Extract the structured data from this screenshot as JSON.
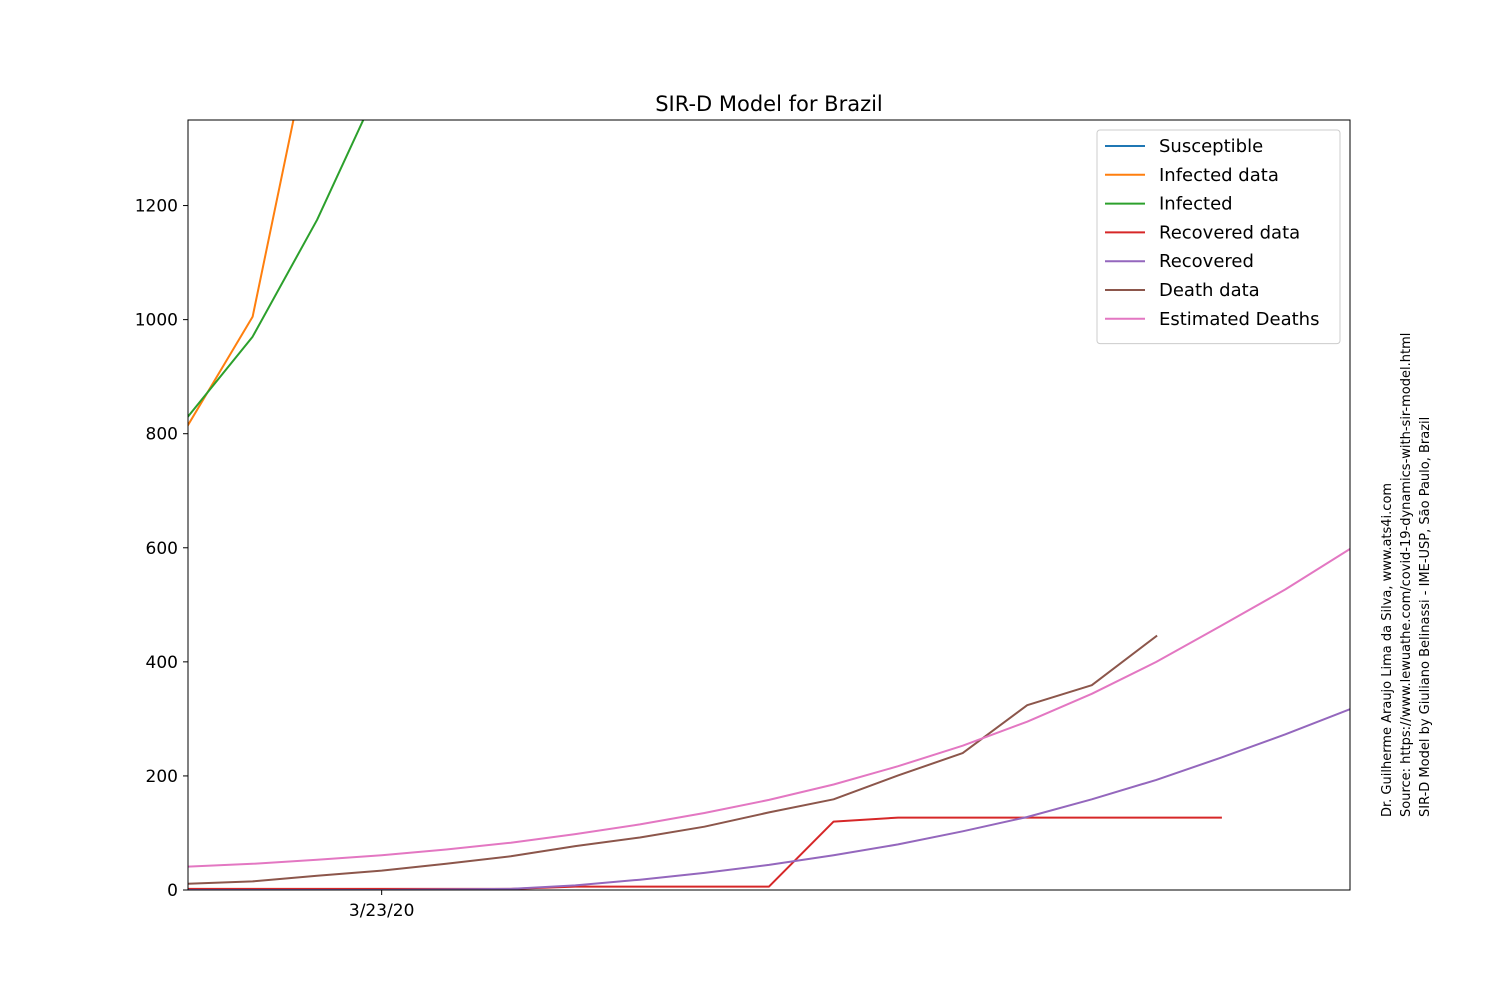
{
  "chart_data": {
    "type": "line",
    "title": "SIR-D Model for Brazil",
    "xlabel": "",
    "ylabel": "",
    "x_start": "3/20/20",
    "x_end": "4/7/20",
    "x_tick_labels": [
      {
        "date": "3/23/20",
        "label": "3/23/20"
      }
    ],
    "ylim": [
      0,
      1350
    ],
    "y_ticks": [
      0,
      200,
      400,
      600,
      800,
      1000,
      1200
    ],
    "grid": false,
    "legend_position": "top-right",
    "series": [
      {
        "name": "Susceptible",
        "color": "#1f77b4",
        "points": []
      },
      {
        "name": "Infected data",
        "color": "#ff7f0e",
        "points": [
          {
            "x": "3/20/20",
            "y": 815
          },
          {
            "x": "3/21/20",
            "y": 1005
          },
          {
            "x": "3/22/20",
            "y": 1550
          }
        ]
      },
      {
        "name": "Infected",
        "color": "#2ca02c",
        "points": [
          {
            "x": "3/20/20",
            "y": 830
          },
          {
            "x": "3/21/20",
            "y": 970
          },
          {
            "x": "3/22/20",
            "y": 1175
          },
          {
            "x": "3/23/20",
            "y": 1420
          }
        ]
      },
      {
        "name": "Recovered data",
        "color": "#d62728",
        "points": [
          {
            "x": "3/20/20",
            "y": 2
          },
          {
            "x": "3/21/20",
            "y": 2
          },
          {
            "x": "3/22/20",
            "y": 2
          },
          {
            "x": "3/23/20",
            "y": 2
          },
          {
            "x": "3/24/20",
            "y": 2
          },
          {
            "x": "3/25/20",
            "y": 2
          },
          {
            "x": "3/26/20",
            "y": 6
          },
          {
            "x": "3/27/20",
            "y": 6
          },
          {
            "x": "3/28/20",
            "y": 6
          },
          {
            "x": "3/29/20",
            "y": 6
          },
          {
            "x": "3/30/20",
            "y": 120
          },
          {
            "x": "3/31/20",
            "y": 127
          },
          {
            "x": "4/1/20",
            "y": 127
          },
          {
            "x": "4/2/20",
            "y": 127
          },
          {
            "x": "4/3/20",
            "y": 127
          },
          {
            "x": "4/4/20",
            "y": 127
          },
          {
            "x": "4/5/20",
            "y": 127
          }
        ]
      },
      {
        "name": "Recovered",
        "color": "#9467bd",
        "points": [
          {
            "x": "3/20/20",
            "y": 0
          },
          {
            "x": "3/21/20",
            "y": 0
          },
          {
            "x": "3/22/20",
            "y": 0
          },
          {
            "x": "3/23/20",
            "y": 0
          },
          {
            "x": "3/24/20",
            "y": 1
          },
          {
            "x": "3/25/20",
            "y": 2
          },
          {
            "x": "3/26/20",
            "y": 8
          },
          {
            "x": "3/27/20",
            "y": 18
          },
          {
            "x": "3/28/20",
            "y": 30
          },
          {
            "x": "3/29/20",
            "y": 44
          },
          {
            "x": "3/30/20",
            "y": 61
          },
          {
            "x": "3/31/20",
            "y": 80
          },
          {
            "x": "4/1/20",
            "y": 103
          },
          {
            "x": "4/2/20",
            "y": 128
          },
          {
            "x": "4/3/20",
            "y": 159
          },
          {
            "x": "4/4/20",
            "y": 193
          },
          {
            "x": "4/5/20",
            "y": 232
          },
          {
            "x": "4/6/20",
            "y": 273
          },
          {
            "x": "4/7/20",
            "y": 317
          }
        ]
      },
      {
        "name": "Death data",
        "color": "#8c564b",
        "points": [
          {
            "x": "3/20/20",
            "y": 11
          },
          {
            "x": "3/21/20",
            "y": 15
          },
          {
            "x": "3/22/20",
            "y": 25
          },
          {
            "x": "3/23/20",
            "y": 34
          },
          {
            "x": "3/24/20",
            "y": 46
          },
          {
            "x": "3/25/20",
            "y": 59
          },
          {
            "x": "3/26/20",
            "y": 77
          },
          {
            "x": "3/27/20",
            "y": 92
          },
          {
            "x": "3/28/20",
            "y": 111
          },
          {
            "x": "3/29/20",
            "y": 136
          },
          {
            "x": "3/30/20",
            "y": 159
          },
          {
            "x": "3/31/20",
            "y": 201
          },
          {
            "x": "4/1/20",
            "y": 240
          },
          {
            "x": "4/2/20",
            "y": 324
          },
          {
            "x": "4/3/20",
            "y": 359
          },
          {
            "x": "4/4/20",
            "y": 445
          }
        ]
      },
      {
        "name": "Estimated Deaths",
        "color": "#e377c2",
        "points": [
          {
            "x": "3/20/20",
            "y": 41
          },
          {
            "x": "3/21/20",
            "y": 46
          },
          {
            "x": "3/22/20",
            "y": 53
          },
          {
            "x": "3/23/20",
            "y": 61
          },
          {
            "x": "3/24/20",
            "y": 71
          },
          {
            "x": "3/25/20",
            "y": 83
          },
          {
            "x": "3/26/20",
            "y": 98
          },
          {
            "x": "3/27/20",
            "y": 115
          },
          {
            "x": "3/28/20",
            "y": 135
          },
          {
            "x": "3/29/20",
            "y": 158
          },
          {
            "x": "3/30/20",
            "y": 185
          },
          {
            "x": "3/31/20",
            "y": 217
          },
          {
            "x": "4/1/20",
            "y": 253
          },
          {
            "x": "4/2/20",
            "y": 295
          },
          {
            "x": "4/3/20",
            "y": 344
          },
          {
            "x": "4/4/20",
            "y": 400
          },
          {
            "x": "4/5/20",
            "y": 463
          },
          {
            "x": "4/6/20",
            "y": 527
          },
          {
            "x": "4/7/20",
            "y": 598
          }
        ]
      }
    ]
  },
  "credits": {
    "line1": "Dr. Guilherme Araujo Lima da Silva, www.ats4i.com",
    "line2": "Source: https://www.lewuathe.com/covid-19-dynamics-with-sir-model.html",
    "line3": "SIR-D Model by Giuliano Belinassi - IME-USP, São Paulo, Brazil"
  }
}
